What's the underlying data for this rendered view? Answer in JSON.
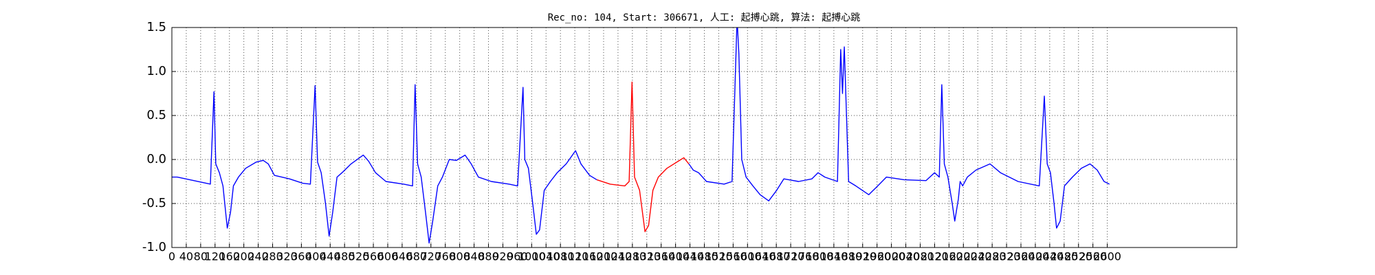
{
  "chart_data": {
    "type": "line",
    "title": "Rec_no: 104, Start: 306671, 人工: 起搏心跳, 算法: 起搏心跳",
    "xlim": [
      0,
      2960
    ],
    "ylim": [
      -1,
      1.5
    ],
    "xticks": [
      0,
      40,
      80,
      120,
      160,
      200,
      240,
      280,
      320,
      360,
      400,
      440,
      480,
      520,
      560,
      600,
      640,
      680,
      720,
      760,
      800,
      840,
      880,
      920,
      960,
      1000,
      1040,
      1080,
      1120,
      1160,
      1200,
      1240,
      1280,
      1320,
      1360,
      1400,
      1440,
      1480,
      1520,
      1560,
      1600,
      1640,
      1680,
      1720,
      1760,
      1800,
      1840,
      1880,
      1920,
      1960,
      2000,
      2040,
      2080,
      2120,
      2160,
      2200,
      2240,
      2280,
      2320,
      2360,
      2400,
      2440,
      2480,
      2520,
      2560,
      2600
    ],
    "yticks": [
      {
        "value": -1,
        "label": "-1.0"
      },
      -0.5,
      {
        "value": 0,
        "label": "0.0"
      },
      0.5,
      {
        "value": 1,
        "label": "1.0"
      },
      1.5
    ],
    "grid": true,
    "segments": [
      {
        "color": "#0000ff",
        "x": [
          0,
          15,
          107,
          117,
          122,
          132,
          142,
          154,
          163,
          171,
          185,
          205,
          234,
          254,
          268,
          285,
          327,
          364,
          385,
          398,
          405,
          415,
          427,
          437,
          447,
          459,
          473,
          498,
          532,
          547,
          566,
          595,
          644,
          669,
          676,
          683,
          693,
          705,
          715,
          725,
          739,
          752,
          771,
          791,
          815,
          832,
          852,
          888,
          937,
          961,
          976,
          981,
          991,
          1003,
          1013,
          1022,
          1035,
          1052,
          1071,
          1096,
          1122,
          1137,
          1161,
          1181
        ],
        "values": [
          -0.2,
          -0.2,
          -0.28,
          0.77,
          -0.05,
          -0.15,
          -0.3,
          -0.78,
          -0.6,
          -0.3,
          -0.2,
          -0.1,
          -0.03,
          -0.01,
          -0.05,
          -0.18,
          -0.22,
          -0.27,
          -0.28,
          0.84,
          -0.03,
          -0.15,
          -0.5,
          -0.87,
          -0.6,
          -0.2,
          -0.15,
          -0.05,
          0.05,
          -0.02,
          -0.15,
          -0.25,
          -0.28,
          -0.3,
          0.85,
          -0.05,
          -0.2,
          -0.6,
          -0.95,
          -0.7,
          -0.3,
          -0.2,
          0.0,
          -0.01,
          0.05,
          -0.05,
          -0.2,
          -0.25,
          -0.28,
          -0.3,
          0.82,
          0.0,
          -0.1,
          -0.5,
          -0.85,
          -0.8,
          -0.35,
          -0.25,
          -0.15,
          -0.05,
          0.1,
          -0.05,
          -0.18,
          -0.23
        ]
      },
      {
        "color": "#ff0000",
        "x": [
          1181,
          1218,
          1259,
          1271,
          1279,
          1286,
          1300,
          1315,
          1325,
          1337,
          1352,
          1376,
          1415,
          1423,
          1437
        ],
        "values": [
          -0.23,
          -0.28,
          -0.3,
          -0.25,
          0.88,
          -0.2,
          -0.35,
          -0.82,
          -0.75,
          -0.35,
          -0.2,
          -0.1,
          0.0,
          0.02,
          -0.05
        ]
      },
      {
        "color": "#0000ff",
        "x": [
          1437,
          1449,
          1464,
          1486,
          1535,
          1557,
          1571,
          1576,
          1584,
          1596,
          1615,
          1635,
          1659,
          1681,
          1701,
          1742,
          1779,
          1796,
          1815,
          1850,
          1859,
          1864,
          1869,
          1881,
          1901,
          1937,
          1957,
          1986,
          2035,
          2096,
          2120,
          2133,
          2140,
          2147,
          2157,
          2169,
          2176,
          2186,
          2191,
          2198,
          2211,
          2235,
          2274,
          2303,
          2352,
          2411,
          2425,
          2433,
          2442,
          2452,
          2459,
          2469,
          2481,
          2503,
          2528,
          2552,
          2572,
          2591,
          2606
        ],
        "values": [
          -0.05,
          -0.12,
          -0.15,
          -0.25,
          -0.28,
          -0.25,
          1.6,
          1.2,
          0.0,
          -0.2,
          -0.3,
          -0.4,
          -0.47,
          -0.35,
          -0.22,
          -0.25,
          -0.22,
          -0.15,
          -0.2,
          -0.25,
          1.25,
          0.75,
          1.28,
          -0.25,
          -0.3,
          -0.4,
          -0.32,
          -0.2,
          -0.23,
          -0.24,
          -0.15,
          -0.2,
          0.85,
          -0.05,
          -0.2,
          -0.5,
          -0.7,
          -0.45,
          -0.25,
          -0.3,
          -0.2,
          -0.12,
          -0.05,
          -0.15,
          -0.25,
          -0.3,
          0.72,
          -0.05,
          -0.15,
          -0.5,
          -0.78,
          -0.7,
          -0.3,
          -0.2,
          -0.1,
          -0.05,
          -0.12,
          -0.25,
          -0.28
        ]
      }
    ]
  }
}
